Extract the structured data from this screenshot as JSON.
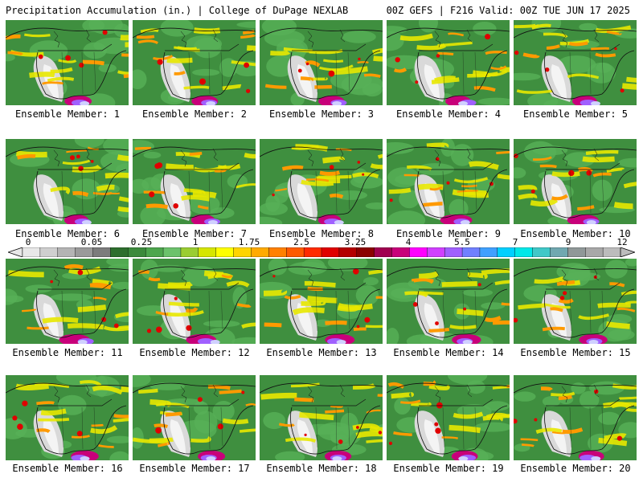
{
  "header": {
    "title": "Precipitation Accumulation (in.) | College of DuPage NEXLAB",
    "run_info": "00Z GEFS | F216 Valid: 00Z TUE JUN 17 2025"
  },
  "members": [
    {
      "label": "Ensemble Member: 1"
    },
    {
      "label": "Ensemble Member: 2"
    },
    {
      "label": "Ensemble Member: 3"
    },
    {
      "label": "Ensemble Member: 4"
    },
    {
      "label": "Ensemble Member: 5"
    },
    {
      "label": "Ensemble Member: 6"
    },
    {
      "label": "Ensemble Member: 7"
    },
    {
      "label": "Ensemble Member: 8"
    },
    {
      "label": "Ensemble Member: 9"
    },
    {
      "label": "Ensemble Member: 10"
    },
    {
      "label": "Ensemble Member: 11"
    },
    {
      "label": "Ensemble Member: 12"
    },
    {
      "label": "Ensemble Member: 13"
    },
    {
      "label": "Ensemble Member: 14"
    },
    {
      "label": "Ensemble Member: 15"
    },
    {
      "label": "Ensemble Member: 16"
    },
    {
      "label": "Ensemble Member: 17"
    },
    {
      "label": "Ensemble Member: 18"
    },
    {
      "label": "Ensemble Member: 19"
    },
    {
      "label": "Ensemble Member: 20"
    }
  ],
  "colorbar": {
    "tick_labels": [
      "0",
      "0.05",
      "0.25",
      "1",
      "1.75",
      "2.5",
      "3.25",
      "4",
      "5.5",
      "7",
      "9",
      "12"
    ],
    "colors": [
      "#e8e8e8",
      "#cfcfcf",
      "#b4b4b4",
      "#9a9a9a",
      "#7c7c7c",
      "#2e6e2e",
      "#3c8a3c",
      "#4ea64e",
      "#6cc26c",
      "#9acd32",
      "#d6e600",
      "#ffff00",
      "#ffd400",
      "#ffaa00",
      "#ff8000",
      "#ff5a00",
      "#ff2a00",
      "#e00000",
      "#b40000",
      "#8b0000",
      "#a00050",
      "#c8007a",
      "#ff00ff",
      "#d040ff",
      "#a060ff",
      "#7080ff",
      "#40a0ff",
      "#00d0ff",
      "#00e8e8",
      "#40c8c8",
      "#70a8b0",
      "#909898",
      "#a8a8a8",
      "#bcbcbc"
    ]
  }
}
